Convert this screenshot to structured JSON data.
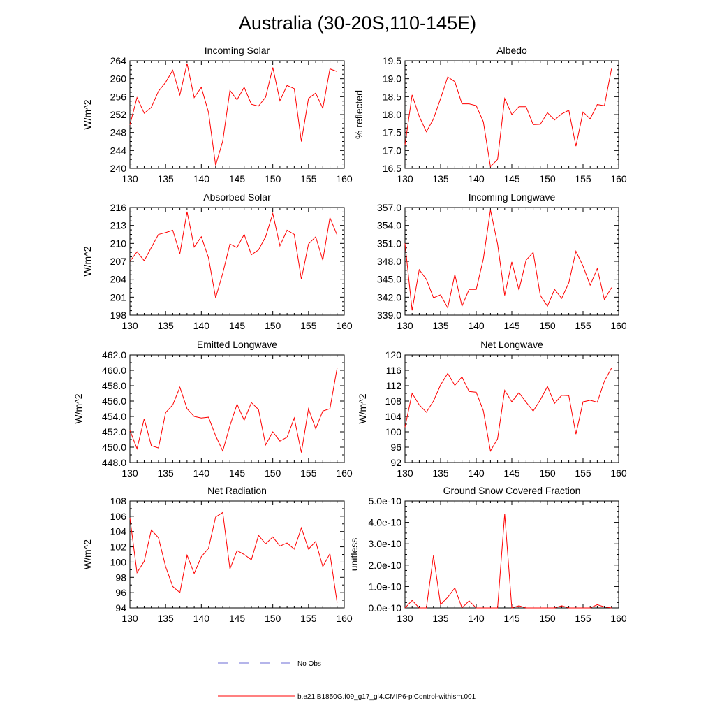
{
  "page": {
    "title": "Australia (30-20S,110-145E)"
  },
  "legend": {
    "entries": [
      {
        "label": "No Obs",
        "color": "#6b6bd6",
        "dash": true
      },
      {
        "label": "b.e21.B1850G.f09_g17_gl4.CMIP6-piControl-withism.001",
        "color": "#ff0000",
        "dash": false
      }
    ]
  },
  "chart_data": [
    {
      "type": "line",
      "title": "Incoming Solar",
      "ylabel": "W/m^2",
      "xlim": [
        130,
        160
      ],
      "ylim": [
        240,
        264
      ],
      "xticks": [
        130,
        135,
        140,
        145,
        150,
        155,
        160
      ],
      "yticks": [
        "240",
        "244",
        "248",
        "252",
        "256",
        "260",
        "264"
      ],
      "x": [
        130,
        131,
        132,
        133,
        134,
        135,
        136,
        137,
        138,
        139,
        140,
        141,
        142,
        143,
        144,
        145,
        146,
        147,
        148,
        149,
        150,
        151,
        152,
        153,
        154,
        155,
        156,
        157,
        158,
        159
      ],
      "series": [
        {
          "color": "#ff0000",
          "values": [
            249.7,
            255.8,
            252.3,
            253.6,
            257.2,
            259.2,
            261.9,
            256.4,
            263.4,
            255.8,
            258.1,
            252.5,
            240.7,
            246.1,
            257.4,
            255.3,
            258.1,
            254.3,
            253.9,
            255.9,
            262.5,
            255.1,
            258.5,
            257.8,
            246.0,
            255.6,
            256.8,
            253.4,
            262.2,
            261.6
          ]
        }
      ]
    },
    {
      "type": "line",
      "title": "Albedo",
      "ylabel": "% reflected",
      "xlim": [
        130,
        160
      ],
      "ylim": [
        16.5,
        19.5
      ],
      "xticks": [
        130,
        135,
        140,
        145,
        150,
        155,
        160
      ],
      "yticks": [
        "16.5",
        "17.0",
        "17.5",
        "18.0",
        "18.5",
        "19.0",
        "19.5"
      ],
      "x": [
        130,
        131,
        132,
        133,
        134,
        135,
        136,
        137,
        138,
        139,
        140,
        141,
        142,
        143,
        144,
        145,
        146,
        147,
        148,
        149,
        150,
        151,
        152,
        153,
        154,
        155,
        156,
        157,
        158,
        159
      ],
      "series": [
        {
          "color": "#ff0000",
          "values": [
            17.15,
            18.55,
            17.95,
            17.52,
            17.88,
            18.45,
            19.05,
            18.92,
            18.3,
            18.3,
            18.25,
            17.8,
            16.55,
            16.75,
            18.45,
            18.0,
            18.22,
            18.22,
            17.72,
            17.73,
            18.05,
            17.85,
            18.02,
            18.12,
            17.12,
            18.07,
            17.88,
            18.28,
            18.25,
            19.28
          ]
        }
      ]
    },
    {
      "type": "line",
      "title": "Absorbed Solar",
      "ylabel": "W/m^2",
      "xlim": [
        130,
        160
      ],
      "ylim": [
        198,
        216
      ],
      "xticks": [
        130,
        135,
        140,
        145,
        150,
        155,
        160
      ],
      "yticks": [
        "198",
        "201",
        "204",
        "207",
        "210",
        "213",
        "216"
      ],
      "x": [
        130,
        131,
        132,
        133,
        134,
        135,
        136,
        137,
        138,
        139,
        140,
        141,
        142,
        143,
        144,
        145,
        146,
        147,
        148,
        149,
        150,
        151,
        152,
        153,
        154,
        155,
        156,
        157,
        158,
        159
      ],
      "series": [
        {
          "color": "#ff0000",
          "values": [
            207.0,
            208.6,
            207.1,
            209.3,
            211.5,
            211.8,
            212.2,
            208.3,
            215.3,
            209.4,
            211.1,
            207.6,
            200.9,
            205.0,
            209.9,
            209.3,
            211.5,
            208.1,
            208.9,
            211.1,
            215.0,
            209.6,
            212.2,
            211.5,
            204.0,
            209.9,
            211.1,
            207.2,
            214.3,
            211.4
          ]
        }
      ]
    },
    {
      "type": "line",
      "title": "Incoming Longwave",
      "ylabel": "",
      "xlim": [
        130,
        160
      ],
      "ylim": [
        339.0,
        357.0
      ],
      "xticks": [
        130,
        135,
        140,
        145,
        150,
        155,
        160
      ],
      "yticks": [
        "339.0",
        "342.0",
        "345.0",
        "348.0",
        "351.0",
        "354.0",
        "357.0"
      ],
      "x": [
        130,
        131,
        132,
        133,
        134,
        135,
        136,
        137,
        138,
        139,
        140,
        141,
        142,
        143,
        144,
        145,
        146,
        147,
        148,
        149,
        150,
        151,
        152,
        153,
        154,
        155,
        156,
        157,
        158,
        159
      ],
      "series": [
        {
          "color": "#ff0000",
          "values": [
            351.0,
            339.8,
            346.6,
            345.0,
            341.9,
            342.4,
            340.2,
            345.8,
            340.5,
            343.3,
            343.3,
            348.4,
            356.6,
            350.9,
            342.3,
            347.9,
            343.2,
            348.2,
            349.5,
            342.3,
            340.5,
            343.3,
            341.8,
            344.4,
            349.7,
            347.2,
            344.0,
            346.8,
            341.6,
            343.6
          ]
        }
      ]
    },
    {
      "type": "line",
      "title": "Emitted Longwave",
      "ylabel": "W/m^2",
      "xlim": [
        130,
        160
      ],
      "ylim": [
        448.0,
        462.0
      ],
      "xticks": [
        130,
        135,
        140,
        145,
        150,
        155,
        160
      ],
      "yticks": [
        "448.0",
        "450.0",
        "452.0",
        "454.0",
        "456.0",
        "458.0",
        "460.0",
        "462.0"
      ],
      "x": [
        130,
        131,
        132,
        133,
        134,
        135,
        136,
        137,
        138,
        139,
        140,
        141,
        142,
        143,
        144,
        145,
        146,
        147,
        148,
        149,
        150,
        151,
        152,
        153,
        154,
        155,
        156,
        157,
        158,
        159
      ],
      "series": [
        {
          "color": "#ff0000",
          "values": [
            452.2,
            449.8,
            453.7,
            450.2,
            449.9,
            454.5,
            455.5,
            457.8,
            455.0,
            454.0,
            453.8,
            453.9,
            451.5,
            449.5,
            452.8,
            455.6,
            453.5,
            455.8,
            454.9,
            450.3,
            452.0,
            450.8,
            451.3,
            453.8,
            449.3,
            455.0,
            452.4,
            454.7,
            455.0,
            460.3
          ]
        }
      ]
    },
    {
      "type": "line",
      "title": "Net Longwave",
      "ylabel": "W/m^2",
      "xlim": [
        130,
        160
      ],
      "ylim": [
        92,
        120
      ],
      "xticks": [
        130,
        135,
        140,
        145,
        150,
        155,
        160
      ],
      "yticks": [
        "92",
        "96",
        "100",
        "104",
        "108",
        "112",
        "116",
        "120"
      ],
      "x": [
        130,
        131,
        132,
        133,
        134,
        135,
        136,
        137,
        138,
        139,
        140,
        141,
        142,
        143,
        144,
        145,
        146,
        147,
        148,
        149,
        150,
        151,
        152,
        153,
        154,
        155,
        156,
        157,
        158,
        159
      ],
      "series": [
        {
          "color": "#ff0000",
          "values": [
            101.2,
            110.0,
            107.0,
            105.1,
            108.0,
            112.2,
            115.2,
            112.1,
            114.3,
            110.5,
            110.3,
            105.5,
            95.0,
            98.2,
            110.8,
            107.8,
            110.2,
            107.7,
            105.4,
            108.3,
            111.8,
            107.4,
            109.5,
            109.4,
            99.4,
            107.8,
            108.2,
            107.7,
            113.2,
            116.6
          ]
        }
      ]
    },
    {
      "type": "line",
      "title": "Net Radiation",
      "ylabel": "W/m^2",
      "xlim": [
        130,
        160
      ],
      "ylim": [
        94,
        108
      ],
      "xticks": [
        130,
        135,
        140,
        145,
        150,
        155,
        160
      ],
      "yticks": [
        "94",
        "96",
        "98",
        "100",
        "102",
        "104",
        "106",
        "108"
      ],
      "x": [
        130,
        131,
        132,
        133,
        134,
        135,
        136,
        137,
        138,
        139,
        140,
        141,
        142,
        143,
        144,
        145,
        146,
        147,
        148,
        149,
        150,
        151,
        152,
        153,
        154,
        155,
        156,
        157,
        158,
        159
      ],
      "series": [
        {
          "color": "#ff0000",
          "values": [
            105.8,
            98.6,
            100.1,
            104.2,
            103.2,
            99.4,
            96.8,
            96.0,
            100.9,
            98.5,
            100.7,
            101.8,
            105.9,
            106.5,
            99.1,
            101.5,
            101.0,
            100.3,
            103.5,
            102.4,
            103.3,
            102.1,
            102.5,
            101.7,
            104.5,
            101.7,
            102.7,
            99.4,
            101.1,
            94.7
          ]
        }
      ]
    },
    {
      "type": "line",
      "title": "Ground Snow Covered Fraction",
      "ylabel": "unitless",
      "xlim": [
        130,
        160
      ],
      "ylim": [
        0,
        5e-10
      ],
      "xticks": [
        130,
        135,
        140,
        145,
        150,
        155,
        160
      ],
      "yticks": [
        "0.0e-10",
        "1.0e-10",
        "2.0e-10",
        "3.0e-10",
        "4.0e-10",
        "5.0e-10"
      ],
      "x": [
        130,
        131,
        132,
        133,
        134,
        135,
        136,
        137,
        138,
        139,
        140,
        141,
        142,
        143,
        144,
        145,
        146,
        147,
        148,
        149,
        150,
        151,
        152,
        153,
        154,
        155,
        156,
        157,
        158,
        159
      ],
      "series": [
        {
          "color": "#ff0000",
          "values": [
            0,
            3.5e-11,
            0,
            0,
            2.45e-10,
            1.5e-11,
            5e-11,
            9.3e-11,
            0,
            3.3e-11,
            0,
            0,
            0,
            0,
            4.4e-10,
            0,
            1e-11,
            0,
            0,
            0,
            0,
            0,
            1e-11,
            0,
            0,
            0,
            0,
            1.5e-11,
            5e-12,
            0
          ]
        }
      ]
    }
  ]
}
